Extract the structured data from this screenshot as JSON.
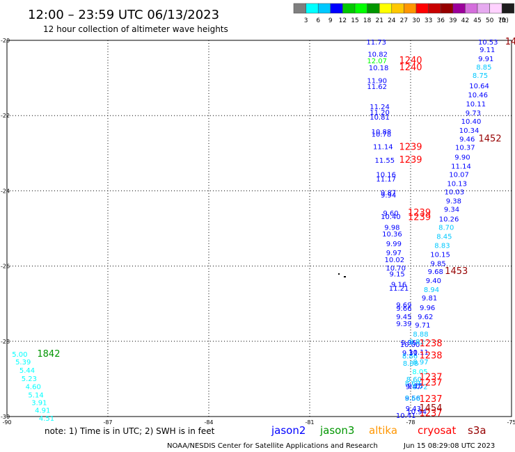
{
  "header": {
    "title": "12:00 – 23:59 UTC 06/13/2023",
    "subtitle": "12 hour collection of altimeter wave heights"
  },
  "colorbar": {
    "labels": [
      "3",
      "6",
      "9",
      "12",
      "15",
      "18",
      "21",
      "24",
      "27",
      "30",
      "33",
      "36",
      "39",
      "42",
      "45",
      "50",
      "70"
    ],
    "unit": "(ft)",
    "colors": [
      "#7f7f7f",
      "#00ffff",
      "#00c8ff",
      "#0000ff",
      "#00c800",
      "#00ff00",
      "#009600",
      "#ffff00",
      "#ffc800",
      "#ff9600",
      "#ff0000",
      "#c80000",
      "#960000",
      "#9b009b",
      "#d46edc",
      "#e6aaf0",
      "#ffd2ff",
      "#1e1e1e"
    ]
  },
  "footer": {
    "note": "note:  1) Time is in UTC;  2) SWH is in feet",
    "credit": "NOAA/NESDIS Center for Satellite Applications and Research",
    "timestamp": "Jun 15 08:29:08 UTC 2023"
  },
  "legend": [
    {
      "name": "jason2",
      "color": "#0000ff"
    },
    {
      "name": "jason3",
      "color": "#009600"
    },
    {
      "name": "altika",
      "color": "#ff9600"
    },
    {
      "name": "cryosat",
      "color": "#ff0000"
    },
    {
      "name": "s3a",
      "color": "#960000"
    }
  ],
  "chart_data": {
    "type": "scatter",
    "xlim": [
      -90,
      -75
    ],
    "ylim": [
      -30,
      -20
    ],
    "xticks": [
      {
        "v": -90,
        "label": "-90"
      },
      {
        "v": -87,
        "label": "-87"
      },
      {
        "v": -84,
        "label": "-84"
      },
      {
        "v": -81,
        "label": "-81"
      },
      {
        "v": -78,
        "label": "-78"
      },
      {
        "v": -75,
        "label": "-75"
      }
    ],
    "yticks": [
      {
        "v": -20,
        "label": "-20"
      },
      {
        "v": -22,
        "label": "-22"
      },
      {
        "v": -24,
        "label": "-24"
      },
      {
        "v": -26,
        "label": "-26"
      },
      {
        "v": -28,
        "label": "-28"
      },
      {
        "v": -30,
        "label": "-30"
      }
    ],
    "grid": true,
    "points": [
      {
        "x": -79.02,
        "y": -20.04,
        "t": "11.73",
        "c": "#0000ff"
      },
      {
        "x": -78.98,
        "y": -20.36,
        "t": "10.82",
        "c": "#0000ff"
      },
      {
        "x": -79.0,
        "y": -20.54,
        "t": "12.07",
        "c": "#00ff00"
      },
      {
        "x": -78.95,
        "y": -20.72,
        "t": "10.18",
        "c": "#0000ff"
      },
      {
        "x": -79.0,
        "y": -21.06,
        "t": "11.90",
        "c": "#0000ff"
      },
      {
        "x": -79.0,
        "y": -21.22,
        "t": "11.62",
        "c": "#0000ff"
      },
      {
        "x": -78.92,
        "y": -21.76,
        "t": "11.24",
        "c": "#0000ff"
      },
      {
        "x": -78.92,
        "y": -21.9,
        "t": "11.20",
        "c": "#0000ff"
      },
      {
        "x": -78.92,
        "y": -22.03,
        "t": "10.81",
        "c": "#0000ff"
      },
      {
        "x": -78.87,
        "y": -22.42,
        "t": "10.88",
        "c": "#0000ff"
      },
      {
        "x": -78.87,
        "y": -22.49,
        "t": "10.78",
        "c": "#0000ff"
      },
      {
        "x": -78.82,
        "y": -22.82,
        "t": "11.14",
        "c": "#0000ff"
      },
      {
        "x": -78.77,
        "y": -23.18,
        "t": "11.55",
        "c": "#0000ff"
      },
      {
        "x": -78.73,
        "y": -23.56,
        "t": "10.16",
        "c": "#0000ff"
      },
      {
        "x": -78.73,
        "y": -23.68,
        "t": "11.17",
        "c": "#0000ff"
      },
      {
        "x": -78.66,
        "y": -24.04,
        "t": "9.87",
        "c": "#0000ff"
      },
      {
        "x": -78.66,
        "y": -24.1,
        "t": "9.94",
        "c": "#0000ff"
      },
      {
        "x": -78.59,
        "y": -24.58,
        "t": "9.60",
        "c": "#0000ff"
      },
      {
        "x": -78.59,
        "y": -24.68,
        "t": "10.40",
        "c": "#0000ff"
      },
      {
        "x": -78.55,
        "y": -24.96,
        "t": "9.98",
        "c": "#0000ff"
      },
      {
        "x": -78.55,
        "y": -25.14,
        "t": "10.36",
        "c": "#0000ff"
      },
      {
        "x": -78.5,
        "y": -25.4,
        "t": "9.99",
        "c": "#0000ff"
      },
      {
        "x": -78.5,
        "y": -25.64,
        "t": "9.97",
        "c": "#0000ff"
      },
      {
        "x": -78.48,
        "y": -25.82,
        "t": "10.02",
        "c": "#0000ff"
      },
      {
        "x": -78.44,
        "y": -26.04,
        "t": "10.70",
        "c": "#0000ff"
      },
      {
        "x": -78.4,
        "y": -26.2,
        "t": "9.15",
        "c": "#0000ff"
      },
      {
        "x": -78.35,
        "y": -26.48,
        "t": "9.16",
        "c": "#0000ff"
      },
      {
        "x": -78.35,
        "y": -26.58,
        "t": "11.21",
        "c": "#0000ff"
      },
      {
        "x": -78.2,
        "y": -27.02,
        "t": "9.69",
        "c": "#0000ff"
      },
      {
        "x": -78.2,
        "y": -27.12,
        "t": "9.66",
        "c": "#0000ff"
      },
      {
        "x": -78.2,
        "y": -27.34,
        "t": "9.45",
        "c": "#0000ff"
      },
      {
        "x": -78.2,
        "y": -27.52,
        "t": "9.39",
        "c": "#0000ff"
      },
      {
        "x": -78.06,
        "y": -28.02,
        "t": "9.96",
        "c": "#0000ff"
      },
      {
        "x": -78.02,
        "y": -28.08,
        "t": "10.00",
        "c": "#0000ff"
      },
      {
        "x": -78.02,
        "y": -28.3,
        "t": "9.31",
        "c": "#0000ff"
      },
      {
        "x": -78.02,
        "y": -28.38,
        "t": "8.86",
        "c": "#00c8ff"
      },
      {
        "x": -78.0,
        "y": -28.58,
        "t": "8.88",
        "c": "#00c8ff"
      },
      {
        "x": -77.82,
        "y": -28.0,
        "t": "8.82",
        "c": "#00c8ff"
      },
      {
        "x": -77.76,
        "y": -28.28,
        "t": "10.11",
        "c": "#0000ff"
      },
      {
        "x": -77.7,
        "y": -28.54,
        "t": "8.97",
        "c": "#00c8ff"
      },
      {
        "x": -77.72,
        "y": -28.8,
        "t": "8.05",
        "c": "#00ffff"
      },
      {
        "x": -77.9,
        "y": -29.0,
        "t": "8.60",
        "c": "#00c8ff"
      },
      {
        "x": -77.94,
        "y": -29.1,
        "t": "8.69",
        "c": "#00c8ff"
      },
      {
        "x": -77.86,
        "y": -29.18,
        "t": "9.15",
        "c": "#0000ff"
      },
      {
        "x": -77.92,
        "y": -29.2,
        "t": "9.47",
        "c": "#0000ff"
      },
      {
        "x": -77.72,
        "y": -29.2,
        "t": "8.72",
        "c": "#00c8ff"
      },
      {
        "x": -77.94,
        "y": -29.5,
        "t": "9.56",
        "c": "#0000ff"
      },
      {
        "x": -77.94,
        "y": -29.5,
        "t": "8.68",
        "c": "#00c8ff"
      },
      {
        "x": -77.92,
        "y": -29.78,
        "t": "9.43",
        "c": "#0000ff"
      },
      {
        "x": -77.82,
        "y": -29.86,
        "t": "10.94",
        "c": "#0000ff"
      },
      {
        "x": -78.14,
        "y": -29.96,
        "t": "10.41",
        "c": "#0000ff"
      },
      {
        "x": -75.7,
        "y": -20.04,
        "t": "10.53",
        "c": "#0000ff"
      },
      {
        "x": -75.72,
        "y": -20.24,
        "t": "9.11",
        "c": "#0000ff"
      },
      {
        "x": -75.76,
        "y": -20.48,
        "t": "9.91",
        "c": "#0000ff"
      },
      {
        "x": -75.82,
        "y": -20.7,
        "t": "8.85",
        "c": "#00c8ff"
      },
      {
        "x": -75.93,
        "y": -20.92,
        "t": "8.75",
        "c": "#00c8ff"
      },
      {
        "x": -75.96,
        "y": -21.2,
        "t": "10.64",
        "c": "#0000ff"
      },
      {
        "x": -76.0,
        "y": -21.44,
        "t": "10.46",
        "c": "#0000ff"
      },
      {
        "x": -76.06,
        "y": -21.68,
        "t": "10.11",
        "c": "#0000ff"
      },
      {
        "x": -76.14,
        "y": -21.92,
        "t": "9.73",
        "c": "#0000ff"
      },
      {
        "x": -76.2,
        "y": -22.14,
        "t": "10.40",
        "c": "#0000ff"
      },
      {
        "x": -76.26,
        "y": -22.38,
        "t": "10.34",
        "c": "#0000ff"
      },
      {
        "x": -76.32,
        "y": -22.62,
        "t": "9.46",
        "c": "#0000ff"
      },
      {
        "x": -76.38,
        "y": -22.84,
        "t": "10.37",
        "c": "#0000ff"
      },
      {
        "x": -76.46,
        "y": -23.1,
        "t": "9.90",
        "c": "#0000ff"
      },
      {
        "x": -76.5,
        "y": -23.34,
        "t": "11.14",
        "c": "#0000ff"
      },
      {
        "x": -76.56,
        "y": -23.56,
        "t": "10.07",
        "c": "#0000ff"
      },
      {
        "x": -76.62,
        "y": -23.8,
        "t": "10.13",
        "c": "#0000ff"
      },
      {
        "x": -76.7,
        "y": -24.02,
        "t": "10.03",
        "c": "#0000ff"
      },
      {
        "x": -76.72,
        "y": -24.26,
        "t": "9.38",
        "c": "#0000ff"
      },
      {
        "x": -76.78,
        "y": -24.48,
        "t": "9.34",
        "c": "#0000ff"
      },
      {
        "x": -76.86,
        "y": -24.74,
        "t": "10.26",
        "c": "#0000ff"
      },
      {
        "x": -76.94,
        "y": -24.96,
        "t": "8.70",
        "c": "#00c8ff"
      },
      {
        "x": -77.0,
        "y": -25.2,
        "t": "8.45",
        "c": "#00c8ff"
      },
      {
        "x": -77.06,
        "y": -25.44,
        "t": "8.83",
        "c": "#00c8ff"
      },
      {
        "x": -77.12,
        "y": -25.68,
        "t": "10.15",
        "c": "#0000ff"
      },
      {
        "x": -77.18,
        "y": -25.92,
        "t": "9.85",
        "c": "#0000ff"
      },
      {
        "x": -77.26,
        "y": -26.14,
        "t": "9.68",
        "c": "#0000ff"
      },
      {
        "x": -77.32,
        "y": -26.38,
        "t": "9.40",
        "c": "#0000ff"
      },
      {
        "x": -77.38,
        "y": -26.62,
        "t": "8.94",
        "c": "#00c8ff"
      },
      {
        "x": -77.44,
        "y": -26.84,
        "t": "9.81",
        "c": "#0000ff"
      },
      {
        "x": -77.5,
        "y": -27.1,
        "t": "9.96",
        "c": "#0000ff"
      },
      {
        "x": -77.56,
        "y": -27.34,
        "t": "9.62",
        "c": "#0000ff"
      },
      {
        "x": -77.64,
        "y": -27.56,
        "t": "9.71",
        "c": "#0000ff"
      },
      {
        "x": -77.7,
        "y": -27.8,
        "t": "8.88",
        "c": "#00c8ff"
      },
      {
        "x": -89.62,
        "y": -28.34,
        "t": "5.00",
        "c": "#00ffff"
      },
      {
        "x": -89.52,
        "y": -28.54,
        "t": "5.39",
        "c": "#00ffff"
      },
      {
        "x": -89.4,
        "y": -28.76,
        "t": "5.44",
        "c": "#00ffff"
      },
      {
        "x": -89.34,
        "y": -28.98,
        "t": "5.23",
        "c": "#00ffff"
      },
      {
        "x": -89.22,
        "y": -29.2,
        "t": "4.60",
        "c": "#00ffff"
      },
      {
        "x": -89.14,
        "y": -29.42,
        "t": "5.14",
        "c": "#00ffff"
      },
      {
        "x": -89.04,
        "y": -29.62,
        "t": "3.91",
        "c": "#00ffff"
      },
      {
        "x": -88.94,
        "y": -29.82,
        "t": "4.91",
        "c": "#00ffff"
      },
      {
        "x": -88.82,
        "y": -30.04,
        "t": "4.51",
        "c": "#00ffff"
      },
      {
        "x": -88.76,
        "y": -28.34,
        "t": "1842",
        "c": "#009600",
        "big": true
      },
      {
        "x": -78.0,
        "y": -20.54,
        "t": "1240",
        "c": "#ff0000",
        "big": true
      },
      {
        "x": -78.0,
        "y": -20.72,
        "t": "1240",
        "c": "#ff0000",
        "big": true
      },
      {
        "x": -78.0,
        "y": -22.84,
        "t": "1239",
        "c": "#ff0000",
        "big": true
      },
      {
        "x": -78.0,
        "y": -23.18,
        "t": "1239",
        "c": "#ff0000",
        "big": true
      },
      {
        "x": -77.74,
        "y": -24.58,
        "t": "1239",
        "c": "#ff0000",
        "big": true
      },
      {
        "x": -77.74,
        "y": -24.7,
        "t": "1239",
        "c": "#ff0000",
        "big": true
      },
      {
        "x": -77.4,
        "y": -28.06,
        "t": "1238",
        "c": "#ff0000",
        "big": true
      },
      {
        "x": -77.4,
        "y": -28.38,
        "t": "1238",
        "c": "#ff0000",
        "big": true
      },
      {
        "x": -77.4,
        "y": -28.96,
        "t": "1237",
        "c": "#ff0000",
        "big": true
      },
      {
        "x": -77.4,
        "y": -29.1,
        "t": "1237",
        "c": "#ff0000",
        "big": true
      },
      {
        "x": -77.4,
        "y": -29.54,
        "t": "1237",
        "c": "#ff0000",
        "big": true
      },
      {
        "x": -77.4,
        "y": -29.92,
        "t": "1237",
        "c": "#ff0000",
        "big": true
      },
      {
        "x": -75.02,
        "y": -20.04,
        "t": "14",
        "c": "#960000",
        "big": true
      },
      {
        "x": -75.64,
        "y": -22.62,
        "t": "1452",
        "c": "#960000",
        "big": true
      },
      {
        "x": -76.64,
        "y": -26.14,
        "t": "1453",
        "c": "#960000",
        "big": true
      },
      {
        "x": -77.4,
        "y": -29.78,
        "t": "1454",
        "c": "#960000",
        "big": true
      }
    ]
  }
}
